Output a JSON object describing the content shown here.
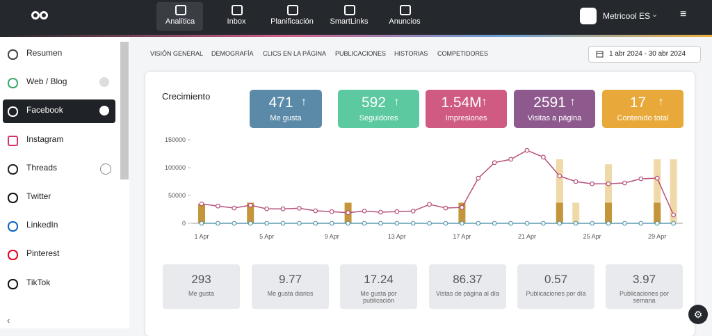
{
  "top_nav": {
    "items": [
      "Analítica",
      "Inbox",
      "Planificación",
      "SmartLinks",
      "Anuncios"
    ],
    "account": "Metricool ES"
  },
  "sidebar": {
    "items": [
      "Resumen",
      "Web / Blog",
      "Facebook",
      "Instagram",
      "Threads",
      "Twitter",
      "LinkedIn",
      "Pinterest",
      "TikTok"
    ]
  },
  "tabs": [
    "VISIÓN GENERAL",
    "DEMOGRAFÍA",
    "CLICS EN LA PÁGINA",
    "PUBLICACIONES",
    "HISTORIAS",
    "COMPETIDORES"
  ],
  "date_range": "1 abr 2024 - 30 abr 2024",
  "card": {
    "title": "Crecimiento",
    "kpis": [
      {
        "value": "471",
        "label": "Me gusta",
        "color": "#5b8aa8"
      },
      {
        "value": "592",
        "label": "Seguidores",
        "color": "#5cc9a0"
      },
      {
        "value": "1.54M",
        "label": "Impresiones",
        "color": "#cf5a82"
      },
      {
        "value": "2591",
        "label": "Visitas a página",
        "color": "#8e5a8e"
      },
      {
        "value": "17",
        "label": "Contenido total",
        "color": "#e8a93a"
      }
    ],
    "stats": [
      {
        "value": "293",
        "label": "Me gusta"
      },
      {
        "value": "9.77",
        "label": "Me gusta diarios"
      },
      {
        "value": "17.24",
        "label": "Me gusta por publicación"
      },
      {
        "value": "86.37",
        "label": "Vistas de página al día"
      },
      {
        "value": "0.57",
        "label": "Publicaciones por día"
      },
      {
        "value": "3.97",
        "label": "Publicaciones por semana"
      }
    ]
  },
  "chart_data": {
    "type": "line",
    "categories": [
      "1 Apr",
      null,
      null,
      null,
      "5 Apr",
      null,
      null,
      null,
      "9 Apr",
      null,
      null,
      null,
      "13 Apr",
      null,
      null,
      null,
      "17 Apr",
      null,
      null,
      null,
      "21 Apr",
      null,
      null,
      null,
      "25 Apr",
      null,
      null,
      null,
      "29 Apr",
      null
    ],
    "series": [
      {
        "type": "bar",
        "color": "#f0d9a8",
        "values": [
          null,
          null,
          null,
          null,
          null,
          null,
          null,
          null,
          null,
          null,
          null,
          null,
          null,
          null,
          null,
          null,
          null,
          null,
          null,
          null,
          null,
          null,
          115000,
          37000,
          null,
          106000,
          null,
          null,
          115000,
          115000
        ]
      },
      {
        "type": "bar",
        "color": "#c4953a",
        "values": [
          35000,
          null,
          null,
          37000,
          null,
          null,
          null,
          null,
          null,
          37000,
          null,
          null,
          null,
          null,
          null,
          null,
          37000,
          null,
          null,
          null,
          null,
          null,
          37000,
          null,
          null,
          37000,
          null,
          null,
          37000,
          null
        ]
      },
      {
        "type": "line",
        "color": "#b5507a",
        "values": [
          35000,
          31000,
          27500,
          32500,
          26000,
          26000,
          27000,
          22500,
          21000,
          19000,
          22000,
          20000,
          21000,
          22000,
          34000,
          27500,
          28500,
          81000,
          109000,
          115000,
          131000,
          119000,
          85000,
          75000,
          71000,
          71000,
          72500,
          80000,
          81000,
          15000
        ]
      },
      {
        "type": "line",
        "color": "#5a9ab0",
        "values": [
          0,
          0,
          0,
          0,
          0,
          0,
          0,
          0,
          0,
          0,
          0,
          0,
          0,
          0,
          0,
          0,
          0,
          0,
          0,
          0,
          0,
          0,
          0,
          0,
          0,
          0,
          0,
          0,
          0,
          0
        ]
      }
    ],
    "ylim": [
      0,
      150000
    ],
    "yticks": [
      0,
      50000,
      100000,
      150000
    ]
  }
}
